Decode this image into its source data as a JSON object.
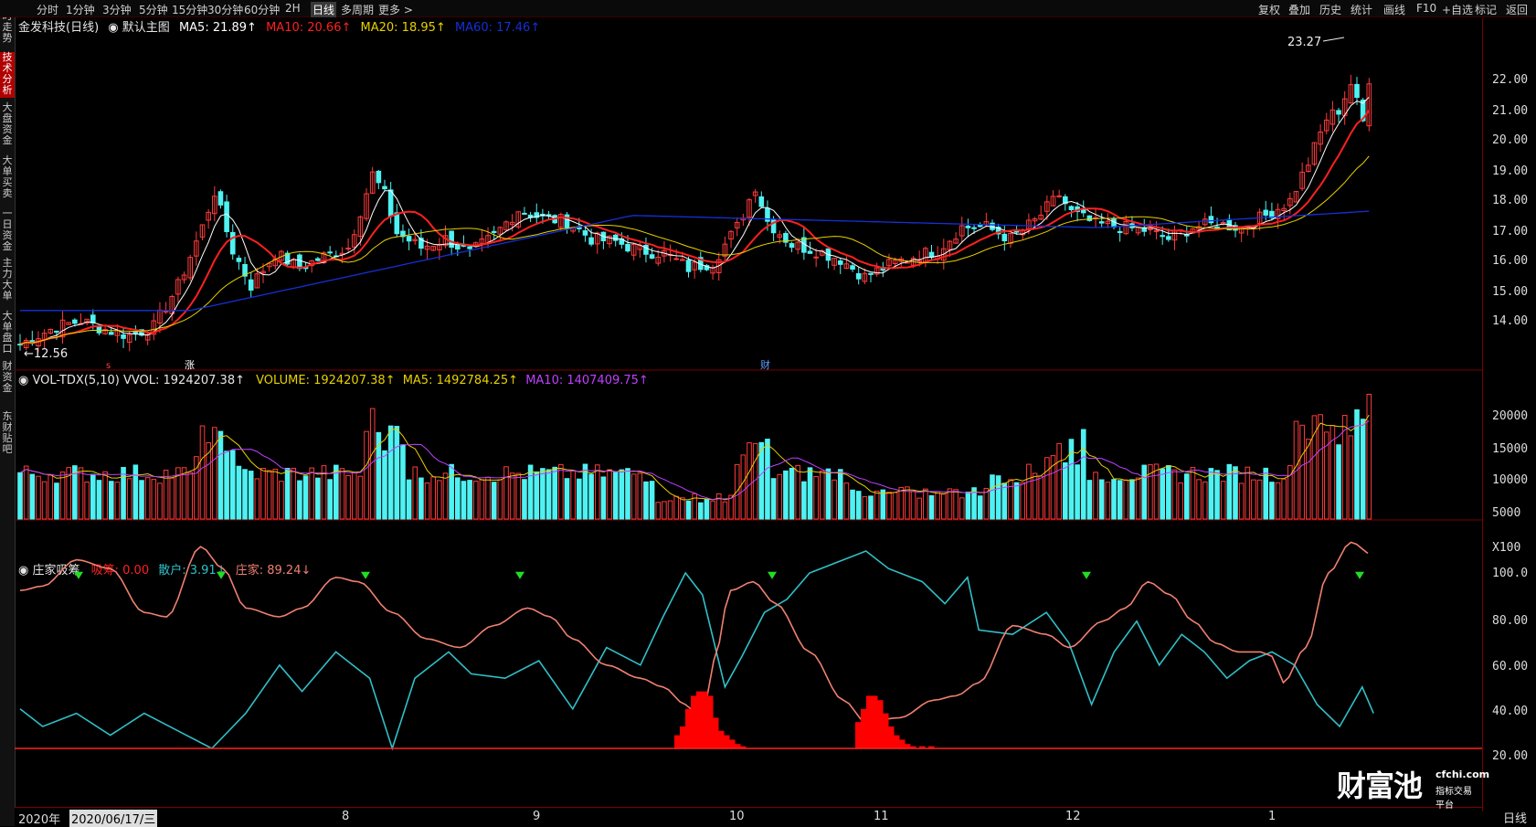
{
  "sidebar": [
    {
      "label": "分时走势",
      "active": false
    },
    {
      "label": "技术分析",
      "active": true
    },
    {
      "label": "大盘资金",
      "active": false
    },
    {
      "label": "大单买卖",
      "active": false
    },
    {
      "label": "一日资金",
      "active": false
    },
    {
      "label": "主力大单",
      "active": false
    },
    {
      "label": "大单盘口",
      "active": false
    },
    {
      "label": "财资金",
      "active": false
    },
    {
      "label": "东财贴吧",
      "active": false
    }
  ],
  "toolbar": {
    "timeframes": [
      "分时",
      "1分钟",
      "3分钟",
      "5分钟",
      "15分钟",
      "30分钟",
      "60分钟",
      "2H",
      "日线",
      "多周期",
      "更多 >"
    ],
    "active_timeframe": "日线",
    "right_tools": [
      "复权",
      "叠加",
      "历史",
      "统计",
      "画线",
      "F10",
      "+自选",
      "标记",
      "返回"
    ]
  },
  "main_panel": {
    "title": "金发科技(日线)",
    "template": "默认主图",
    "ma5": "MA5: 21.89↑",
    "ma10": "MA10: 20.66↑",
    "ma20": "MA20: 18.95↑",
    "ma60": "MA60: 17.46↑",
    "high_label": "23.27",
    "low_label": "12.56",
    "marker_fin": "财",
    "marker_zhang": "涨",
    "marker_s": "s",
    "y_ticks": [
      "22.00",
      "21.00",
      "20.00",
      "19.00",
      "18.00",
      "17.00",
      "16.00",
      "15.00",
      "14.00"
    ]
  },
  "volume_panel": {
    "title": "VOL-TDX(5,10) VVOL: 1924207.38↑",
    "volume": "VOLUME: 1924207.38↑",
    "ma5": "MA5: 1492784.25↑",
    "ma10": "MA10: 1407409.75↑",
    "y_ticks": [
      "20000",
      "15000",
      "10000",
      "5000",
      "X100"
    ]
  },
  "indicator_panel": {
    "title": "庄家吸筹",
    "xichou": "吸筹: 0.00",
    "sanhu": "散户: 3.91↓",
    "zhuangjia": "庄家: 89.24↓",
    "y_ticks": [
      "100.0",
      "80.00",
      "60.00",
      "40.00",
      "20.00"
    ]
  },
  "x_axis": {
    "year": "2020年",
    "cursor_date": "2020/06/17/三",
    "months": [
      "8",
      "9",
      "10",
      "11",
      "12",
      "1"
    ],
    "period": "日线"
  },
  "watermark": {
    "brand": "财富池",
    "url": "cfchi.com",
    "sub": "指标交易平台"
  },
  "colors": {
    "up": "#ff3b3b",
    "down": "#4ff2f2",
    "ma5": "#ffffff",
    "ma10": "#ff2020",
    "ma20": "#e8d000",
    "ma60": "#1530d8",
    "vol_ma5": "#e8d000",
    "vol_ma10": "#c040ff",
    "zj": "#f08070",
    "sh": "#30c0c8",
    "xc": "#ff0000"
  },
  "chart_data": {
    "type": "candlestick",
    "start_open": 13.0,
    "price_range": [
      12.56,
      23.27
    ],
    "last_close": 21.89,
    "ma_latest": {
      "ma5": 21.89,
      "ma10": 20.66,
      "ma20": 18.95,
      "ma60": 17.46
    },
    "volume_latest": 1924207.38,
    "indicator_latest": {
      "xichou": 0.0,
      "sanhu": 3.91,
      "zhuangjia": 89.24
    }
  }
}
